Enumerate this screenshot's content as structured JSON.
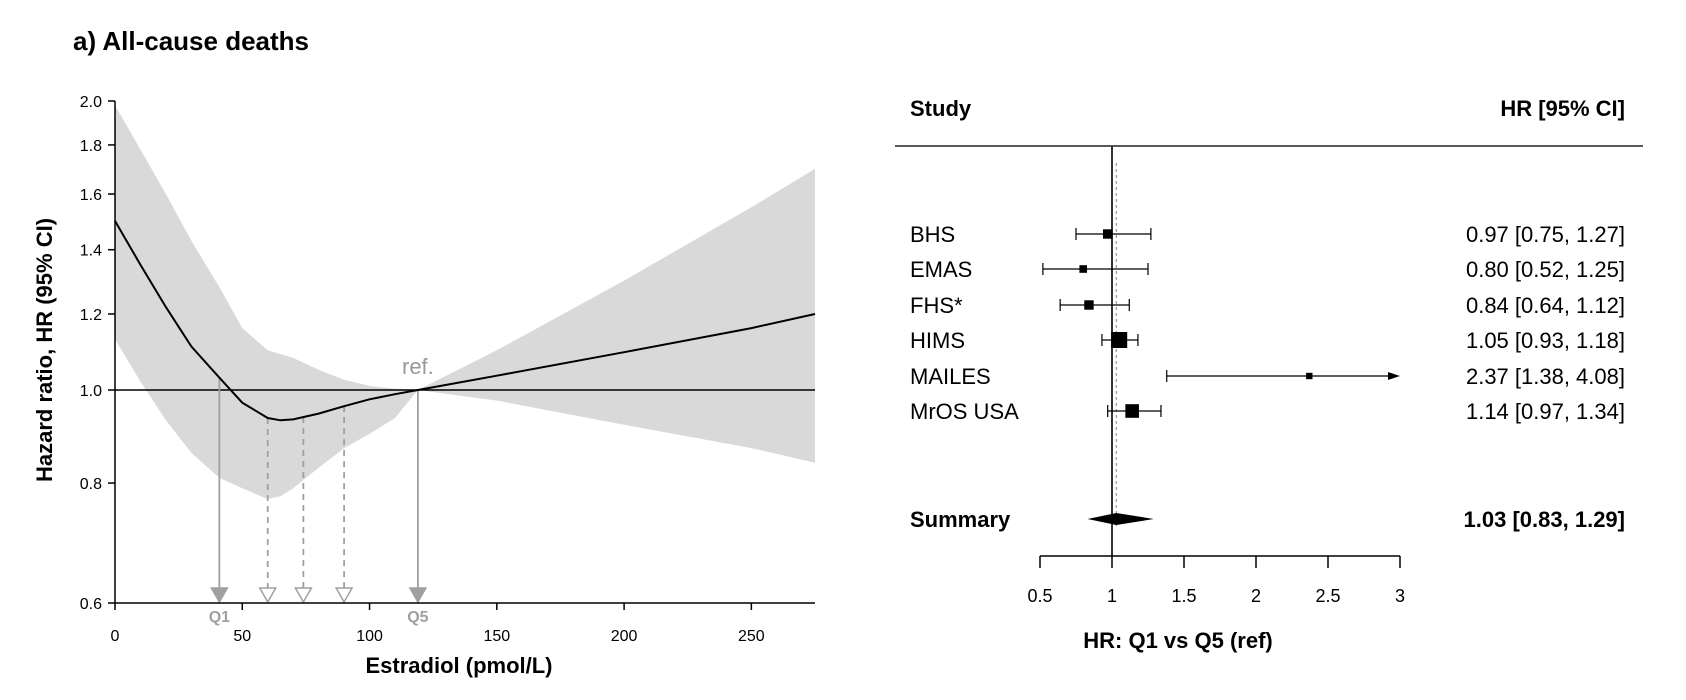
{
  "panel_title": "a) All-cause deaths",
  "colors": {
    "band": "#d9d9d9",
    "line": "#000000",
    "marker_gray": "#a0a0a0",
    "ref_gray": "#999999",
    "axis": "#000000",
    "forest_line": "#595959"
  },
  "chart_data": [
    {
      "type": "line",
      "xlabel": "Estradiol (pmol/L)",
      "ylabel": "Hazard ratio, HR (95% CI)",
      "xlim": [
        0,
        275
      ],
      "ylim": [
        0.6,
        2.0
      ],
      "y_scale": "log",
      "x_ticks": [
        0,
        50,
        100,
        150,
        200,
        250
      ],
      "y_ticks": [
        0.6,
        0.8,
        1.0,
        1.2,
        1.4,
        1.6,
        1.8,
        2.0
      ],
      "y_tick_labels": [
        "0.6",
        "0.8",
        "1.0",
        "1.2",
        "1.4",
        "1.6",
        "1.8",
        "2.0"
      ],
      "reference_line_y": 1.0,
      "reference_label": "ref.",
      "series": [
        {
          "values_x": [
            0,
            10,
            20,
            30,
            41,
            50,
            60,
            65,
            70,
            80,
            90,
            100,
            110,
            119,
            150,
            200,
            250,
            275
          ],
          "values_y": [
            1.5,
            1.35,
            1.22,
            1.11,
            1.03,
            0.97,
            0.935,
            0.93,
            0.932,
            0.945,
            0.962,
            0.978,
            0.99,
            1.0,
            1.035,
            1.095,
            1.16,
            1.2
          ],
          "ci_lower": [
            1.13,
            1.02,
            0.93,
            0.86,
            0.81,
            0.79,
            0.77,
            0.775,
            0.79,
            0.83,
            0.87,
            0.9,
            0.935,
            1.0,
            0.975,
            0.92,
            0.87,
            0.84
          ],
          "ci_upper": [
            1.98,
            1.78,
            1.6,
            1.43,
            1.28,
            1.16,
            1.1,
            1.09,
            1.08,
            1.05,
            1.025,
            1.01,
            1.003,
            1.0,
            1.1,
            1.3,
            1.55,
            1.7
          ]
        }
      ],
      "quintile_markers": [
        {
          "x": 41,
          "label": "Q1",
          "style": "solid"
        },
        {
          "x": 60,
          "label": "",
          "style": "dashed"
        },
        {
          "x": 74,
          "label": "",
          "style": "dashed"
        },
        {
          "x": 90,
          "label": "",
          "style": "dashed"
        },
        {
          "x": 119,
          "label": "Q5",
          "style": "solid"
        }
      ]
    },
    {
      "type": "forest",
      "column_study": "Study",
      "column_hr": "HR [95% CI]",
      "xlabel": "HR: Q1 vs Q5 (ref)",
      "xlim": [
        0.5,
        3
      ],
      "x_ticks": [
        0.5,
        1,
        1.5,
        2,
        2.5,
        3
      ],
      "x_tick_labels": [
        "0.5",
        "1",
        "1.5",
        "2",
        "2.5",
        "3"
      ],
      "reference_x": 1,
      "summary_x": 1.03,
      "studies": [
        {
          "name": "BHS",
          "hr": 0.97,
          "lo": 0.75,
          "hi": 1.27,
          "label": "0.97 [0.75, 1.27]",
          "weight": 0.45
        },
        {
          "name": "EMAS",
          "hr": 0.8,
          "lo": 0.52,
          "hi": 1.25,
          "label": "0.80 [0.52, 1.25]",
          "weight": 0.3
        },
        {
          "name": "FHS*",
          "hr": 0.84,
          "lo": 0.64,
          "hi": 1.12,
          "label": "0.84 [0.64, 1.12]",
          "weight": 0.45
        },
        {
          "name": "HIMS",
          "hr": 1.05,
          "lo": 0.93,
          "hi": 1.18,
          "label": "1.05 [0.93, 1.18]",
          "weight": 1.0
        },
        {
          "name": "MAILES",
          "hr": 2.37,
          "lo": 1.38,
          "hi": 4.08,
          "label": "2.37 [1.38, 4.08]",
          "weight": 0.2
        },
        {
          "name": "MrOS USA",
          "hr": 1.14,
          "lo": 0.97,
          "hi": 1.34,
          "label": "1.14 [0.97, 1.34]",
          "weight": 0.8
        }
      ],
      "summary": {
        "name": "Summary",
        "hr": 1.03,
        "lo": 0.83,
        "hi": 1.29,
        "label": "1.03 [0.83, 1.29]"
      }
    }
  ]
}
